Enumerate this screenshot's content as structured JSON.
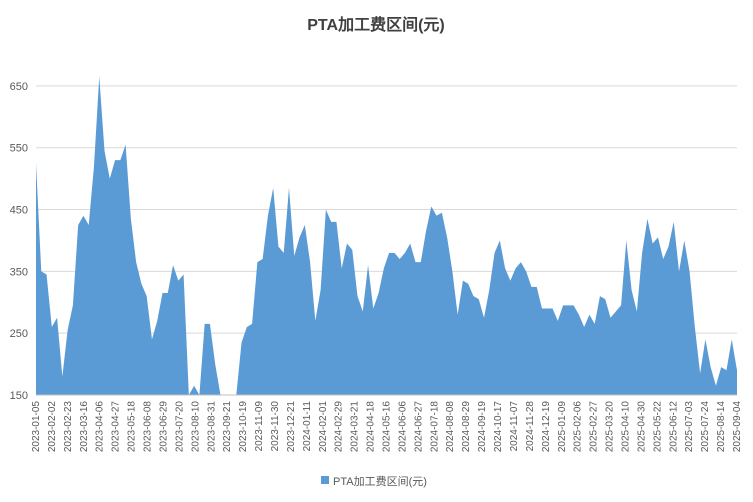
{
  "chart_data": {
    "type": "area",
    "title": "PTA加工费区间(元)",
    "xlabel": "",
    "ylabel": "",
    "ylim": [
      150,
      700
    ],
    "yticks": [
      150,
      250,
      350,
      450,
      550,
      650
    ],
    "grid": true,
    "legend_position": "bottom",
    "colors": {
      "area": "#5b9bd5",
      "grid": "#d9d9d9",
      "axis": "#bfbfbf"
    },
    "x_tick_labels": [
      "2023-01-05",
      "2023-02-02",
      "2023-02-23",
      "2023-03-16",
      "2023-04-06",
      "2023-04-27",
      "2023-05-18",
      "2023-06-08",
      "2023-06-29",
      "2023-07-20",
      "2023-08-10",
      "2023-08-31",
      "2023-09-21",
      "2023-10-19",
      "2023-11-09",
      "2023-11-30",
      "2023-12-21",
      "2024-01-11",
      "2024-02-01",
      "2024-02-29",
      "2024-03-21",
      "2024-04-18",
      "2024-05-16",
      "2024-06-06",
      "2024-06-27",
      "2024-07-18",
      "2024-08-08",
      "2024-08-29",
      "2024-09-19",
      "2024-10-17",
      "2024-11-07",
      "2024-11-28",
      "2024-12-19",
      "2025-01-09",
      "2025-02-06",
      "2025-02-27",
      "2025-03-20",
      "2025-04-10",
      "2025-04-30",
      "2025-05-22",
      "2025-06-12",
      "2025-07-03",
      "2025-07-24",
      "2025-08-14",
      "2025-09-04"
    ],
    "series": [
      {
        "name": "PTA加工费区间(元)",
        "values": [
          525,
          350,
          345,
          260,
          275,
          180,
          255,
          295,
          425,
          440,
          425,
          520,
          665,
          545,
          500,
          530,
          530,
          555,
          435,
          365,
          330,
          310,
          240,
          270,
          315,
          315,
          360,
          335,
          345,
          150,
          165,
          150,
          265,
          265,
          200,
          150,
          150,
          150,
          150,
          235,
          260,
          265,
          365,
          370,
          440,
          485,
          390,
          380,
          485,
          375,
          405,
          425,
          365,
          270,
          320,
          450,
          430,
          430,
          355,
          395,
          385,
          310,
          285,
          360,
          290,
          315,
          355,
          380,
          380,
          370,
          380,
          395,
          365,
          365,
          415,
          455,
          440,
          445,
          405,
          350,
          280,
          335,
          330,
          310,
          305,
          275,
          320,
          380,
          400,
          355,
          335,
          355,
          365,
          350,
          325,
          325,
          290,
          290,
          290,
          270,
          295,
          295,
          295,
          280,
          260,
          280,
          265,
          310,
          305,
          275,
          285,
          295,
          400,
          320,
          285,
          380,
          435,
          395,
          405,
          370,
          390,
          430,
          350,
          400,
          350,
          260,
          185,
          240,
          195,
          165,
          195,
          190,
          240,
          190
        ]
      }
    ]
  }
}
